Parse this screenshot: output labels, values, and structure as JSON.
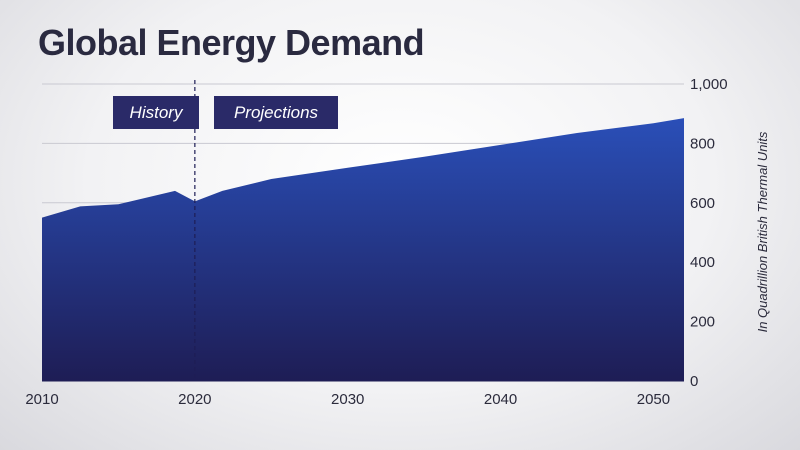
{
  "title": "Global Energy Demand",
  "chart_data": {
    "type": "area",
    "title": "Global Energy Demand",
    "ylabel": "In Quadrillion British Thermal Units",
    "xlabel": "",
    "x_ticks": [
      "2010",
      "2020",
      "2030",
      "2040",
      "2050"
    ],
    "y_ticks": [
      "0",
      "200",
      "400",
      "600",
      "800",
      "1,000"
    ],
    "xlim": [
      2010,
      2052
    ],
    "ylim": [
      0,
      1000
    ],
    "grid": true,
    "series": [
      {
        "x": [
          2010,
          2012.5,
          2015,
          2018.7,
          2020,
          2021.8,
          2025,
          2030,
          2035,
          2040,
          2045,
          2050,
          2052
        ],
        "values": [
          550,
          588,
          595,
          640,
          605,
          640,
          680,
          718,
          755,
          795,
          835,
          868,
          885
        ]
      }
    ],
    "annotations": [
      {
        "label": "History",
        "x": 2020,
        "side": "left"
      },
      {
        "label": "Projections",
        "x": 2020,
        "side": "right"
      }
    ],
    "divider_x": 2020,
    "colors": {
      "area_top": "#2a4fb8",
      "area_bottom": "#1e1d55",
      "tag_bg": "#2a2a68"
    }
  }
}
